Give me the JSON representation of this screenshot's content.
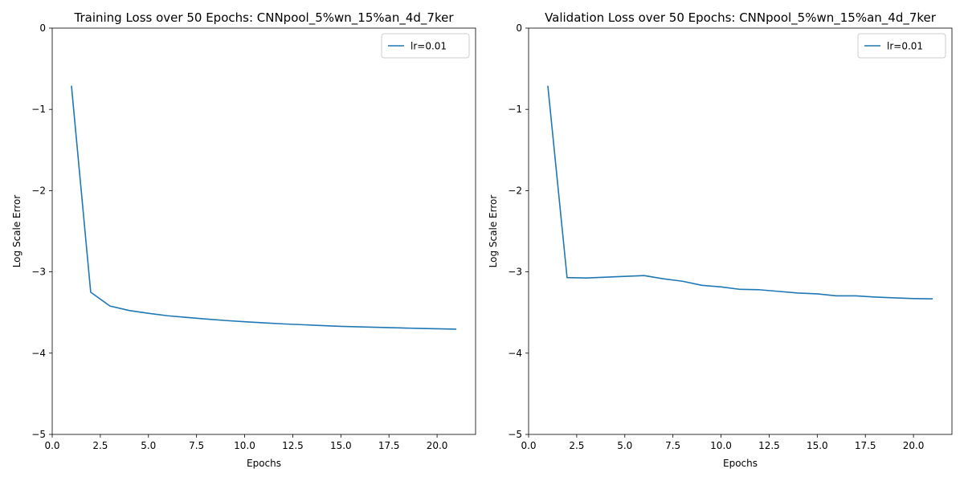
{
  "chart_data": [
    {
      "type": "line",
      "title": "Training Loss over 50 Epochs: CNNpool_5%wn_15%an_4d_7ker",
      "xlabel": "Epochs",
      "ylabel": "Log Scale Error",
      "xlim": [
        0,
        22
      ],
      "ylim": [
        -5,
        0
      ],
      "xticks": [
        "0.0",
        "2.5",
        "5.0",
        "7.5",
        "10.0",
        "12.5",
        "15.0",
        "17.5",
        "20.0"
      ],
      "yticks": [
        "0",
        "−1",
        "−2",
        "−3",
        "−4",
        "−5"
      ],
      "grid": false,
      "legend_position": "top-right",
      "x": [
        1,
        2,
        3,
        4,
        5,
        6,
        7,
        8,
        9,
        10,
        11,
        12,
        13,
        14,
        15,
        16,
        17,
        18,
        19,
        20,
        21
      ],
      "series": [
        {
          "name": "lr=0.01",
          "color": "#1f77b4",
          "values": [
            -0.71,
            -3.25,
            -3.42,
            -3.475,
            -3.51,
            -3.54,
            -3.56,
            -3.58,
            -3.598,
            -3.613,
            -3.627,
            -3.64,
            -3.65,
            -3.66,
            -3.67,
            -3.677,
            -3.683,
            -3.689,
            -3.695,
            -3.7,
            -3.705
          ]
        }
      ]
    },
    {
      "type": "line",
      "title": "Validation Loss over 50 Epochs: CNNpool_5%wn_15%an_4d_7ker",
      "xlabel": "Epochs",
      "ylabel": "Log Scale Error",
      "xlim": [
        0,
        22
      ],
      "ylim": [
        -5,
        0
      ],
      "xticks": [
        "0.0",
        "2.5",
        "5.0",
        "7.5",
        "10.0",
        "12.5",
        "15.0",
        "17.5",
        "20.0"
      ],
      "yticks": [
        "0",
        "−1",
        "−2",
        "−3",
        "−4",
        "−5"
      ],
      "grid": false,
      "legend_position": "top-right",
      "x": [
        1,
        2,
        3,
        4,
        5,
        6,
        7,
        8,
        9,
        10,
        11,
        12,
        13,
        14,
        15,
        16,
        17,
        18,
        19,
        20,
        21
      ],
      "series": [
        {
          "name": "lr=0.01",
          "color": "#1f77b4",
          "values": [
            -0.71,
            -3.07,
            -3.075,
            -3.065,
            -3.055,
            -3.045,
            -3.085,
            -3.115,
            -3.165,
            -3.185,
            -3.215,
            -3.22,
            -3.24,
            -3.26,
            -3.27,
            -3.295,
            -3.295,
            -3.31,
            -3.32,
            -3.328,
            -3.332
          ]
        }
      ]
    }
  ]
}
